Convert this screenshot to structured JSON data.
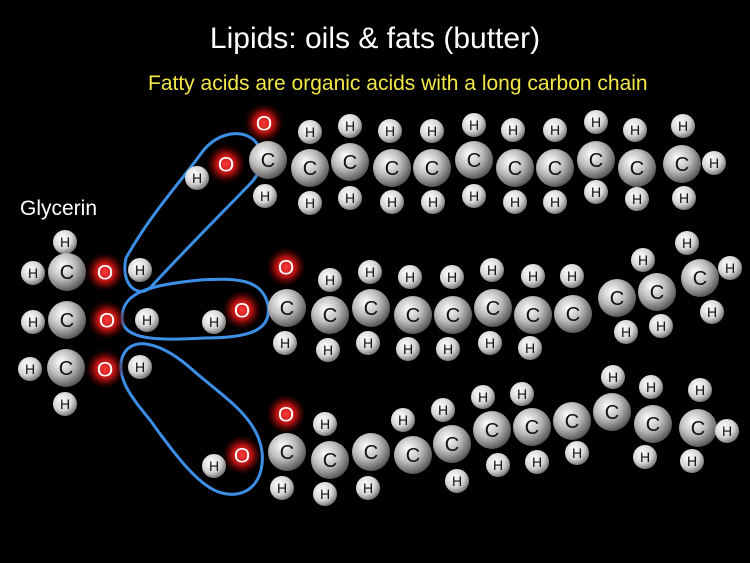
{
  "title": "Lipids: oils & fats (butter)",
  "subtitle": "Fatty acids are organic acids with a long carbon chain",
  "glycerin_label": "Glycerin",
  "atom_labels": {
    "C": "C",
    "H": "H",
    "O": "O"
  },
  "colors": {
    "background": "#000000",
    "title": "#ffffff",
    "subtitle": "#f2e84a",
    "carbon": "#c9c9c9",
    "hydrogen": "#dedede",
    "oxygen_glow": "#b01010",
    "bond_loop": "#3d8fe6"
  },
  "molecule": {
    "glycerin": {
      "carbons": 3,
      "hydroxyl_groups": 3
    },
    "fatty_acids": [
      {
        "name": "fatty-acid-1",
        "carbons": 11
      },
      {
        "name": "fatty-acid-2",
        "carbons": 11
      },
      {
        "name": "fatty-acid-3",
        "carbons": 11
      }
    ]
  }
}
